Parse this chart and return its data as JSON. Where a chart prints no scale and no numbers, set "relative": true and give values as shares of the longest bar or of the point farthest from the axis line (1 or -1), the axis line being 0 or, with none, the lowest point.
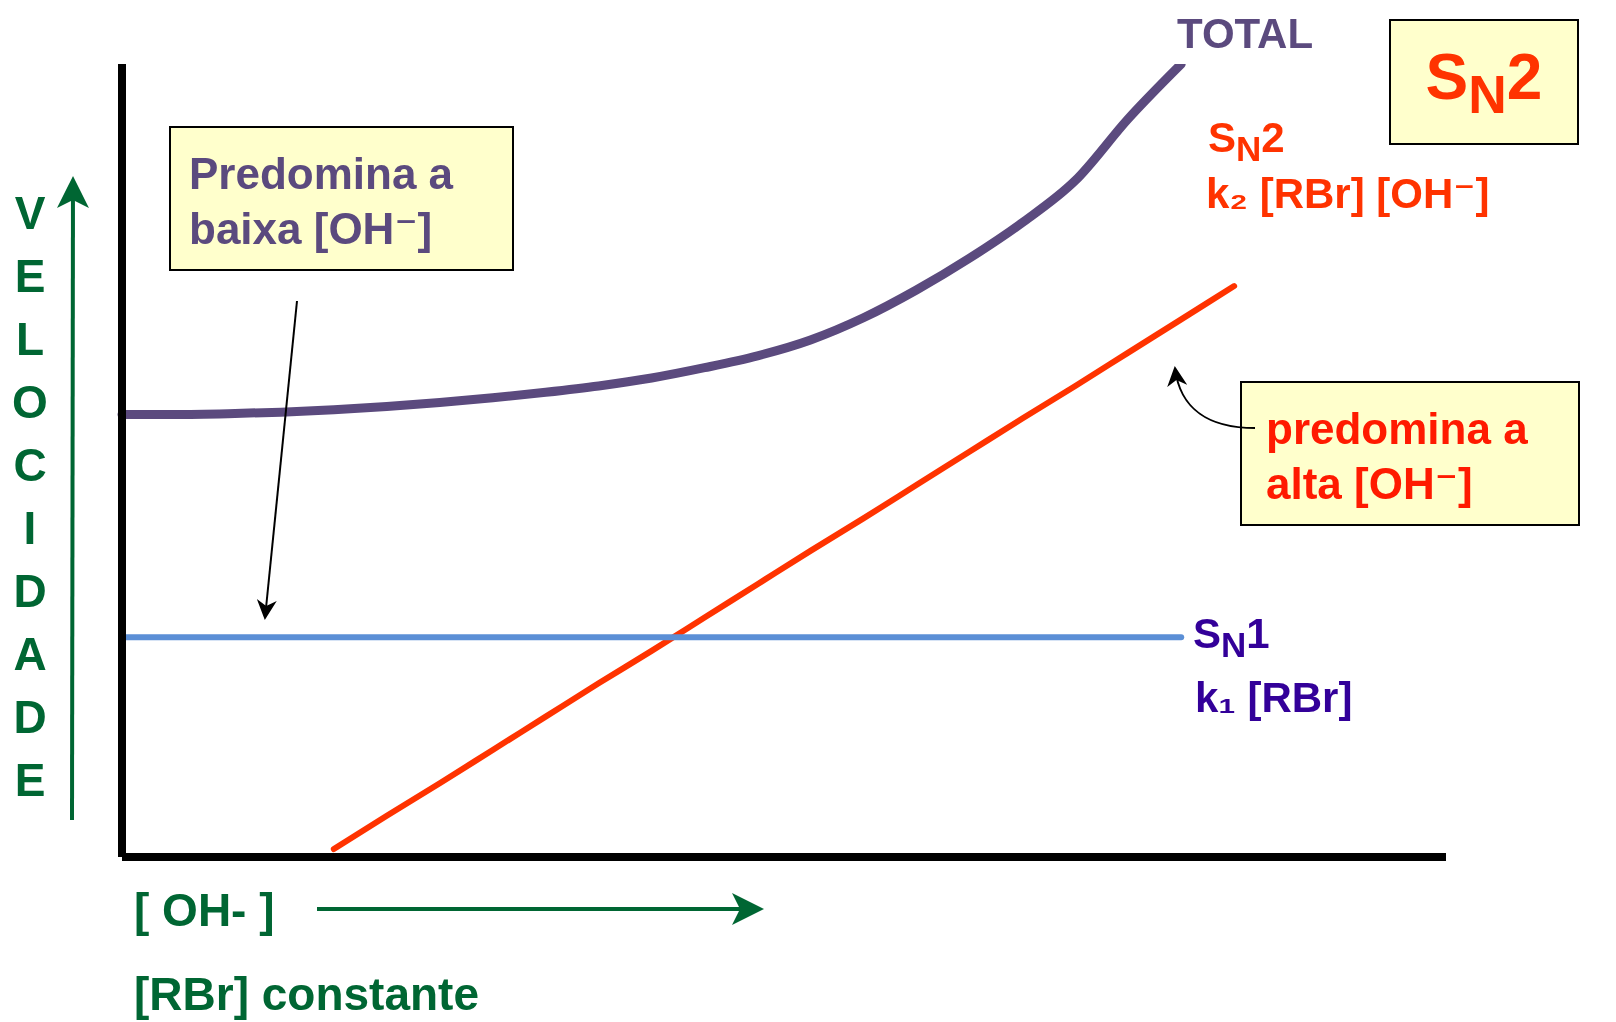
{
  "chart_data": {
    "type": "line",
    "relative": true,
    "title": "S$_{N}$2",
    "xlabel": "[ OH- ]",
    "ylabel": "VELOCIDADE",
    "legend": false,
    "grid": false,
    "marker": "none",
    "line_style": "solid",
    "categories": [
      null,
      null,
      null,
      null,
      null,
      null,
      null,
      null,
      null,
      null,
      null,
      null,
      null,
      null,
      null,
      null,
      null,
      null,
      null,
      null,
      null,
      null,
      null,
      null,
      null,
      null
    ],
    "series": [
      {
        "name": "TOTAL",
        "color": "#5b4a7e",
        "values": [
          0.558,
          0.558,
          0.559,
          0.561,
          0.564,
          0.568,
          0.573,
          0.579,
          0.586,
          0.594,
          0.604,
          0.617,
          0.632,
          0.652,
          0.68,
          0.715,
          0.755,
          0.8,
          0.853,
          0.931,
          1,
          null,
          null,
          null,
          null,
          null
        ]
      },
      {
        "name": "S$_{N}$2",
        "color": "#ff3300",
        "values": [
          null,
          null,
          null,
          null,
          0.01,
          0.052,
          0.093,
          0.135,
          0.177,
          0.219,
          0.26,
          0.302,
          0.344,
          0.386,
          0.427,
          0.469,
          0.511,
          0.553,
          0.594,
          0.636,
          0.678,
          0.72,
          null,
          null,
          null,
          null
        ]
      },
      {
        "name": "S$_{N}$1",
        "color": "#5b8fd6",
        "values": [
          0.277,
          0.277,
          0.277,
          0.277,
          0.277,
          0.277,
          0.277,
          0.277,
          0.277,
          0.277,
          0.277,
          0.277,
          0.277,
          0.277,
          0.277,
          0.277,
          0.277,
          0.277,
          0.277,
          0.277,
          0.277,
          null,
          null,
          null,
          null,
          null
        ]
      }
    ],
    "annotations": [
      "k₂ [RBr] [OH⁻]",
      "k₁ [RBr]",
      "Predomina a baixa [OH⁻]",
      "predomina a alta [OH⁻]",
      "[RBr] constante"
    ]
  }
}
